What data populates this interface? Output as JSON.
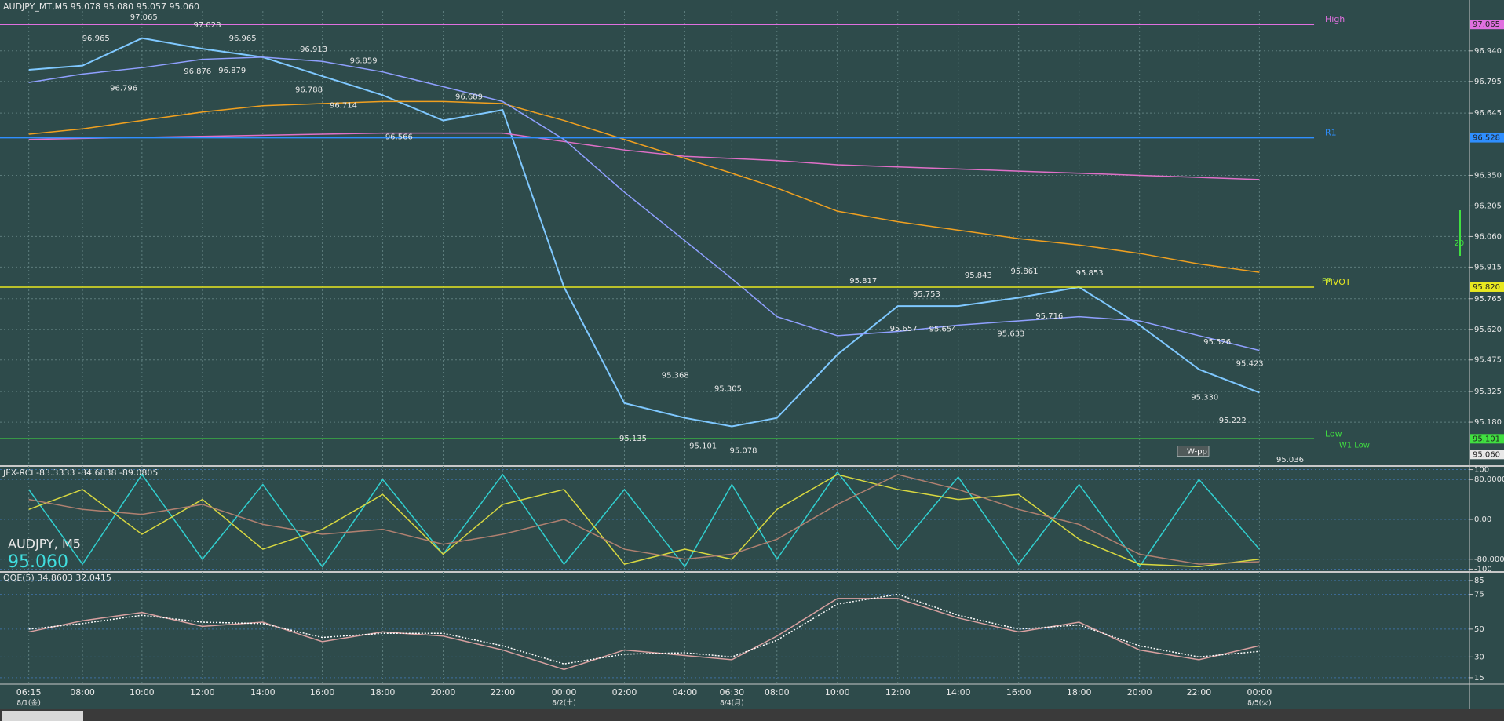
{
  "chart_data": [
    {
      "type": "line",
      "title": "AUDJPY_MT,M5  95.078 95.080 95.057 95.060",
      "categories": [
        "06:15",
        "08:00",
        "10:00",
        "12:00",
        "14:00",
        "16:00",
        "18:00",
        "20:00",
        "22:00",
        "00:00",
        "02:00",
        "04:00",
        "06:30",
        "08:00",
        "10:00",
        "12:00",
        "14:00",
        "16:00",
        "18:00",
        "20:00",
        "22:00",
        "00:00"
      ],
      "dates": [
        "8/1(金)",
        "8/2(土)",
        "8/4(月)",
        "8/5(火)"
      ],
      "series": [
        {
          "color": "#7fc8ff",
          "values": [
            96.85,
            96.87,
            97.0,
            96.95,
            96.91,
            96.82,
            96.73,
            96.61,
            96.66,
            95.82,
            95.27,
            95.2,
            95.16,
            95.2,
            95.5,
            95.73,
            95.73,
            95.77,
            95.82,
            95.64,
            95.43,
            95.32
          ]
        },
        {
          "color": "#f0a020",
          "values": [
            96.545,
            96.57,
            96.61,
            96.65,
            96.68,
            96.69,
            96.7,
            96.7,
            96.69,
            96.61,
            96.52,
            96.43,
            96.36,
            96.29,
            96.18,
            96.13,
            96.09,
            96.05,
            96.02,
            95.98,
            95.93,
            95.89
          ]
        },
        {
          "color": "#e070c8",
          "values": [
            96.52,
            96.525,
            96.53,
            96.535,
            96.54,
            96.545,
            96.55,
            96.55,
            96.55,
            96.51,
            96.47,
            96.44,
            96.43,
            96.42,
            96.4,
            96.39,
            96.38,
            96.37,
            96.36,
            96.35,
            96.34,
            96.33
          ]
        },
        {
          "color": "#8fa0ff",
          "values": [
            96.79,
            96.83,
            96.86,
            96.9,
            96.91,
            96.89,
            96.84,
            96.77,
            96.7,
            96.52,
            96.27,
            96.04,
            95.86,
            95.68,
            95.59,
            95.61,
            95.64,
            95.66,
            95.68,
            95.66,
            95.59,
            95.52
          ]
        }
      ],
      "ylim": [
        94.972,
        97.181
      ],
      "yticks": [
        {
          "value": 96.94,
          "label": "96.940"
        },
        96.795,
        96.645,
        {
          "value": 96.35,
          "label": "96.350"
        },
        96.205,
        {
          "value": 96.06,
          "label": "96.060"
        },
        95.915,
        95.765,
        {
          "value": 95.62,
          "label": "95.620"
        },
        95.475,
        95.325,
        {
          "value": 95.18,
          "label": "95.180"
        }
      ],
      "grid": true,
      "levels": [
        {
          "name": "High",
          "value": 97.065,
          "color": "#e070e0"
        },
        {
          "name": "R1",
          "value": 96.528,
          "color": "#2f8fff"
        },
        {
          "name": "PIVOT",
          "value": 95.82,
          "value_label": "95.820",
          "color": "#e8e820"
        },
        {
          "name": "Low",
          "value": 95.101,
          "color": "#40e040"
        }
      ],
      "level_notes": [
        "PP",
        "W1 Low",
        "W-pp",
        "20"
      ],
      "close": {
        "value": 95.06,
        "label": "95.060"
      },
      "annotations": [
        {
          "value": 97.065,
          "label": "97.065"
        },
        {
          "value": 96.965,
          "label": "96.965"
        },
        {
          "value": 97.028,
          "label": "97.028"
        },
        {
          "value": 96.965,
          "label": "96.965"
        },
        {
          "value": 96.913,
          "label": "96.913"
        },
        {
          "value": 96.876,
          "label": "96.876"
        },
        {
          "value": 96.879,
          "label": "96.879"
        },
        {
          "value": 96.796,
          "label": "96.796"
        },
        {
          "value": 96.859,
          "label": "96.859"
        },
        {
          "value": 96.788,
          "label": "96.788"
        },
        {
          "value": 96.714,
          "label": "96.714"
        },
        {
          "value": 96.689,
          "label": "96.689"
        },
        {
          "value": 96.566,
          "label": "96.566"
        },
        {
          "value": 95.368,
          "label": "95.368"
        },
        {
          "value": 95.305,
          "label": "95.305"
        },
        {
          "value": 95.135,
          "label": "95.135"
        },
        {
          "value": 95.101,
          "label": "95.101"
        },
        {
          "value": 95.078,
          "label": "95.078"
        },
        {
          "value": 95.817,
          "label": "95.817"
        },
        {
          "value": 95.753,
          "label": "95.753"
        },
        {
          "value": 95.657,
          "label": "95.657"
        },
        {
          "value": 95.654,
          "label": "95.654"
        },
        {
          "value": 95.843,
          "label": "95.843"
        },
        {
          "value": 95.861,
          "label": "95.861"
        },
        {
          "value": 95.853,
          "label": "95.853"
        },
        {
          "value": 95.716,
          "label": "95.716"
        },
        {
          "value": 95.633,
          "label": "95.633"
        },
        {
          "value": 95.526,
          "label": "95.526"
        },
        {
          "value": 95.423,
          "label": "95.423"
        },
        {
          "value": 95.33,
          "label": "95.330"
        },
        {
          "value": 95.222,
          "label": "95.222"
        },
        {
          "value": 95.036,
          "label": "95.036"
        }
      ]
    },
    {
      "type": "line",
      "title": "JFX-RCI -83.3333 -84.6838 -89.0805",
      "series": [
        {
          "color": "#30d0d0",
          "values": [
            60,
            -90,
            90,
            -80,
            70,
            -95,
            80,
            -70,
            90,
            -90,
            60,
            -95,
            70,
            -80,
            95,
            -60,
            85,
            -90,
            70,
            -95,
            80,
            -60
          ]
        },
        {
          "color": "#d8d840",
          "values": [
            20,
            60,
            -30,
            40,
            -60,
            -20,
            50,
            -70,
            30,
            60,
            -90,
            -60,
            -80,
            20,
            90,
            60,
            40,
            50,
            -40,
            -90,
            -95,
            -80
          ]
        },
        {
          "color": "#b08070",
          "values": [
            40,
            20,
            10,
            30,
            -10,
            -30,
            -20,
            -50,
            -30,
            0,
            -60,
            -80,
            -70,
            -40,
            30,
            90,
            60,
            20,
            -10,
            -70,
            -90,
            -85
          ]
        }
      ],
      "ylim": [
        -104,
        104
      ],
      "yticks": [
        100,
        {
          "value": 80,
          "label": "80.0000"
        },
        {
          "value": 0,
          "label": "0.00"
        },
        {
          "value": -80,
          "label": "-80.0000"
        },
        -100
      ],
      "symbol": "AUDJPY, M5",
      "price": "95.060"
    },
    {
      "type": "line",
      "title": "QQE(5) 34.8603 32.0415",
      "series": [
        {
          "color": "#d8a0a0",
          "values": [
            48,
            56,
            62,
            52,
            55,
            41,
            48,
            45,
            35,
            21,
            35,
            31,
            28,
            45,
            72,
            72,
            58,
            48,
            55,
            35,
            28,
            38
          ]
        },
        {
          "color": "#ffffff",
          "dashed": true,
          "values": [
            50,
            54,
            60,
            55,
            54,
            44,
            47,
            47,
            38,
            25,
            32,
            33,
            30,
            42,
            68,
            75,
            60,
            50,
            53,
            38,
            30,
            34
          ]
        }
      ],
      "ylim": [
        11,
        90
      ],
      "yticks": [
        85,
        75,
        50,
        30,
        15
      ]
    }
  ]
}
